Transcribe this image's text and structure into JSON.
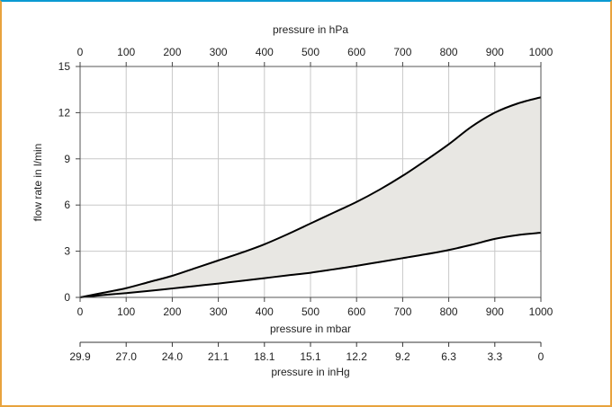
{
  "chart_data": {
    "type": "area",
    "x_top_label": "pressure in hPa",
    "x_bottom_label": "pressure in mbar",
    "inhg_label": "pressure in inHg",
    "ylabel": "flow rate in l/min",
    "xlim": [
      0,
      1000
    ],
    "ylim": [
      0,
      15
    ],
    "x_ticks": [
      "0",
      "100",
      "200",
      "300",
      "400",
      "500",
      "600",
      "700",
      "800",
      "900",
      "1000"
    ],
    "y_ticks": [
      "0",
      "3",
      "6",
      "9",
      "12",
      "15"
    ],
    "inhg_ticks": [
      "29.9",
      "27.0",
      "24.0",
      "21.1",
      "18.1",
      "15.1",
      "12.2",
      "9.2",
      "6.3",
      "3.3",
      "0"
    ],
    "grid": true,
    "series": [
      {
        "x": [
          0,
          50,
          100,
          150,
          200,
          250,
          300,
          350,
          400,
          450,
          500,
          550,
          600,
          650,
          700,
          750,
          800,
          850,
          900,
          950,
          1000
        ],
        "values": [
          0,
          0.3,
          0.6,
          1.0,
          1.4,
          1.9,
          2.4,
          2.9,
          3.45,
          4.1,
          4.8,
          5.5,
          6.2,
          7.0,
          7.9,
          8.9,
          9.95,
          11.1,
          12.0,
          12.6,
          13.0
        ]
      },
      {
        "x": [
          0,
          50,
          100,
          150,
          200,
          250,
          300,
          350,
          400,
          450,
          500,
          550,
          600,
          650,
          700,
          750,
          800,
          850,
          900,
          950,
          1000
        ],
        "values": [
          0,
          0.15,
          0.28,
          0.42,
          0.58,
          0.74,
          0.9,
          1.07,
          1.25,
          1.43,
          1.6,
          1.82,
          2.05,
          2.3,
          2.55,
          2.8,
          3.08,
          3.42,
          3.8,
          4.05,
          4.2
        ]
      }
    ],
    "fill_color": "#e8e7e3",
    "line_color": "#000000"
  }
}
